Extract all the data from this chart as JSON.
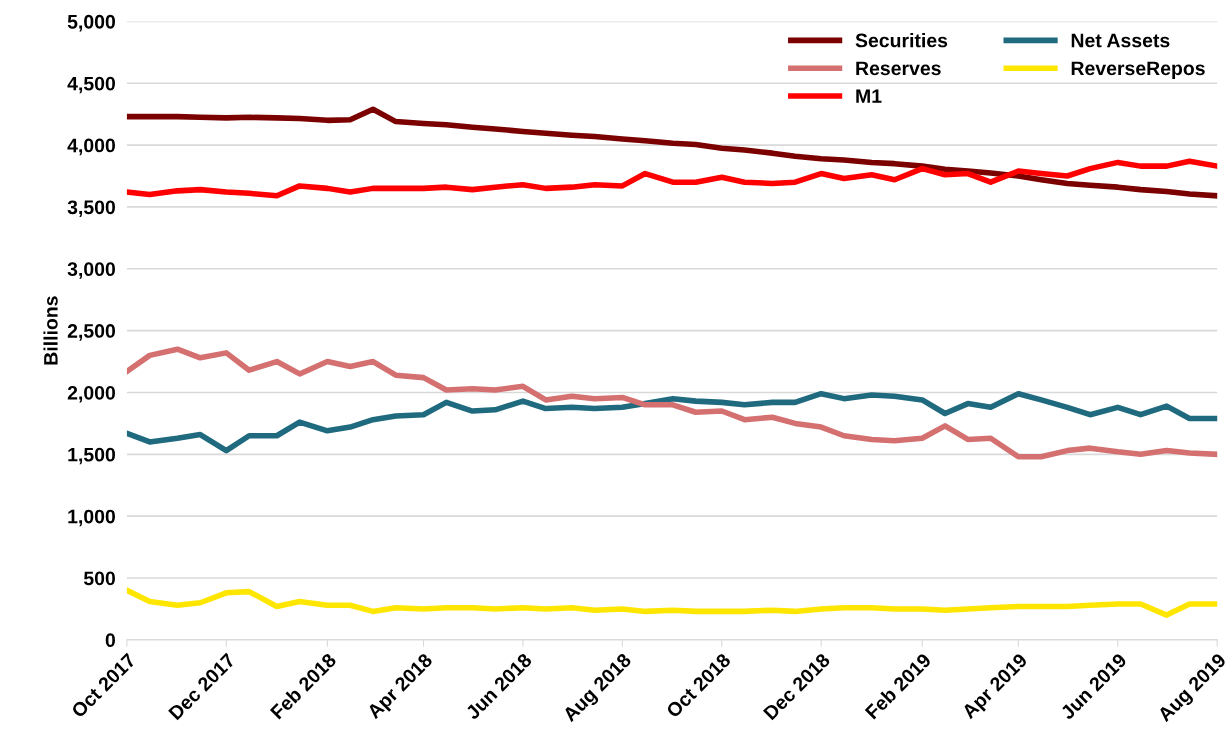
{
  "chart_data": {
    "type": "line",
    "ylabel": "Billions",
    "x": [
      "2017-10-01",
      "2017-10-15",
      "2017-11-01",
      "2017-11-15",
      "2017-12-01",
      "2017-12-15",
      "2018-01-01",
      "2018-01-15",
      "2018-02-01",
      "2018-02-15",
      "2018-03-01",
      "2018-03-15",
      "2018-04-01",
      "2018-04-15",
      "2018-05-01",
      "2018-05-15",
      "2018-06-01",
      "2018-06-15",
      "2018-07-01",
      "2018-07-15",
      "2018-08-01",
      "2018-08-15",
      "2018-09-01",
      "2018-09-15",
      "2018-10-01",
      "2018-10-15",
      "2018-11-01",
      "2018-11-15",
      "2018-12-01",
      "2018-12-15",
      "2019-01-01",
      "2019-01-15",
      "2019-02-01",
      "2019-02-15",
      "2019-03-01",
      "2019-03-15",
      "2019-04-01",
      "2019-04-15",
      "2019-05-01",
      "2019-05-15",
      "2019-06-01",
      "2019-06-15",
      "2019-07-01",
      "2019-07-15",
      "2019-08-01"
    ],
    "series": [
      {
        "name": "Securities",
        "color": "#7b0000",
        "values": [
          4230,
          4230,
          4230,
          4225,
          4220,
          4225,
          4220,
          4215,
          4200,
          4205,
          4290,
          4190,
          4175,
          4165,
          4145,
          4130,
          4110,
          4095,
          4080,
          4070,
          4050,
          4035,
          4015,
          4005,
          3975,
          3960,
          3935,
          3910,
          3890,
          3880,
          3860,
          3850,
          3830,
          3805,
          3790,
          3775,
          3750,
          3720,
          3690,
          3675,
          3660,
          3640,
          3625,
          3605,
          3590
        ]
      },
      {
        "name": "Net Assets",
        "color": "#1f6a7e",
        "values": [
          1670,
          1600,
          1630,
          1660,
          1530,
          1650,
          1650,
          1760,
          1690,
          1720,
          1780,
          1810,
          1820,
          1920,
          1850,
          1860,
          1930,
          1870,
          1880,
          1870,
          1880,
          1910,
          1950,
          1930,
          1920,
          1900,
          1920,
          1920,
          1990,
          1950,
          1980,
          1970,
          1940,
          1830,
          1910,
          1880,
          1990,
          1940,
          1880,
          1820,
          1880,
          1820,
          1890,
          1790,
          1790
        ]
      },
      {
        "name": "Reserves",
        "color": "#d47070",
        "values": [
          2170,
          2300,
          2350,
          2280,
          2320,
          2180,
          2250,
          2150,
          2250,
          2210,
          2250,
          2140,
          2120,
          2020,
          2030,
          2020,
          2050,
          1940,
          1970,
          1950,
          1960,
          1900,
          1900,
          1840,
          1850,
          1780,
          1800,
          1750,
          1720,
          1650,
          1620,
          1610,
          1630,
          1730,
          1620,
          1630,
          1480,
          1480,
          1530,
          1550,
          1520,
          1500,
          1530,
          1510,
          1500
        ]
      },
      {
        "name": "ReverseRepos",
        "color": "#ffe600",
        "values": [
          400,
          310,
          280,
          300,
          380,
          390,
          270,
          310,
          280,
          280,
          230,
          260,
          250,
          260,
          260,
          250,
          260,
          250,
          260,
          240,
          250,
          230,
          240,
          230,
          230,
          230,
          240,
          230,
          250,
          260,
          260,
          250,
          250,
          240,
          250,
          260,
          270,
          270,
          270,
          280,
          290,
          290,
          200,
          290,
          290
        ]
      },
      {
        "name": "M1",
        "color": "#ff0000",
        "values": [
          3620,
          3600,
          3630,
          3640,
          3620,
          3610,
          3590,
          3670,
          3650,
          3620,
          3650,
          3650,
          3650,
          3660,
          3640,
          3660,
          3680,
          3650,
          3660,
          3680,
          3670,
          3770,
          3700,
          3700,
          3740,
          3700,
          3690,
          3700,
          3770,
          3730,
          3760,
          3720,
          3810,
          3760,
          3770,
          3700,
          3790,
          3770,
          3750,
          3810,
          3860,
          3830,
          3830,
          3870,
          3830
        ]
      }
    ],
    "xlim": [
      "2017-10-01",
      "2019-08-01"
    ],
    "xticks": [
      {
        "value": "2017-10-01",
        "label": "Oct 2017"
      },
      {
        "value": "2017-12-01",
        "label": "Dec 2017"
      },
      {
        "value": "2018-02-01",
        "label": "Feb 2018"
      },
      {
        "value": "2018-04-01",
        "label": "Apr 2018"
      },
      {
        "value": "2018-06-01",
        "label": "Jun 2018"
      },
      {
        "value": "2018-08-01",
        "label": "Aug 2018"
      },
      {
        "value": "2018-10-01",
        "label": "Oct 2018"
      },
      {
        "value": "2018-12-01",
        "label": "Dec 2018"
      },
      {
        "value": "2019-02-01",
        "label": "Feb 2019"
      },
      {
        "value": "2019-04-01",
        "label": "Apr 2019"
      },
      {
        "value": "2019-06-01",
        "label": "Jun 2019"
      },
      {
        "value": "2019-08-01",
        "label": "Aug 2019"
      }
    ],
    "ylim": [
      0,
      5000
    ],
    "yticks": [
      0,
      {
        "value": 500,
        "label": "500"
      },
      {
        "value": 1000,
        "label": "1,000"
      },
      {
        "value": 1500,
        "label": "1,500"
      },
      {
        "value": 2000,
        "label": "2,000"
      },
      {
        "value": 2500,
        "label": "2,500"
      },
      {
        "value": 3000,
        "label": "3,000"
      },
      {
        "value": 3500,
        "label": "3,500"
      },
      {
        "value": 4000,
        "label": "4,000"
      },
      {
        "value": 4500,
        "label": "4,500"
      },
      {
        "value": 5000,
        "label": "5,000"
      }
    ],
    "grid": "y",
    "legend": "top right",
    "marker": "none",
    "line_style": "solid"
  }
}
